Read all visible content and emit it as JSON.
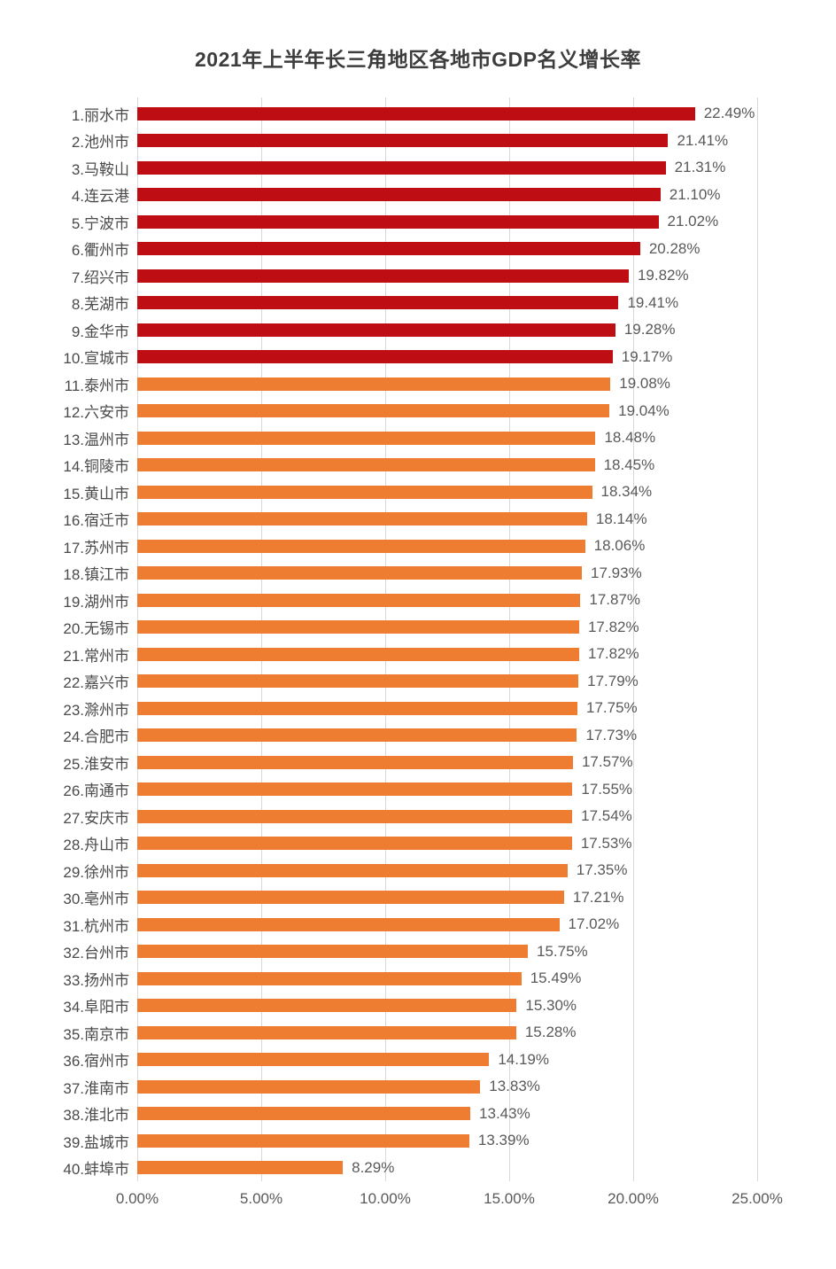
{
  "chart_data": {
    "type": "bar",
    "orientation": "horizontal",
    "title": "2021年上半年长三角地区各地市GDP名义增长率",
    "categories": [
      "1.丽水市",
      "2.池州市",
      "3.马鞍山",
      "4.连云港",
      "5.宁波市",
      "6.衢州市",
      "7.绍兴市",
      "8.芜湖市",
      "9.金华市",
      "10.宣城市",
      "11.泰州市",
      "12.六安市",
      "13.温州市",
      "14.铜陵市",
      "15.黄山市",
      "16.宿迁市",
      "17.苏州市",
      "18.镇江市",
      "19.湖州市",
      "20.无锡市",
      "21.常州市",
      "22.嘉兴市",
      "23.滁州市",
      "24.合肥市",
      "25.淮安市",
      "26.南通市",
      "27.安庆市",
      "28.舟山市",
      "29.徐州市",
      "30.亳州市",
      "31.杭州市",
      "32.台州市",
      "33.扬州市",
      "34.阜阳市",
      "35.南京市",
      "36.宿州市",
      "37.淮南市",
      "38.淮北市",
      "39.盐城市",
      "40.蚌埠市"
    ],
    "values": [
      22.49,
      21.41,
      21.31,
      21.1,
      21.02,
      20.28,
      19.82,
      19.41,
      19.28,
      19.17,
      19.08,
      19.04,
      18.48,
      18.45,
      18.34,
      18.14,
      18.06,
      17.93,
      17.87,
      17.82,
      17.82,
      17.79,
      17.75,
      17.73,
      17.57,
      17.55,
      17.54,
      17.53,
      17.35,
      17.21,
      17.02,
      15.75,
      15.49,
      15.3,
      15.28,
      14.19,
      13.83,
      13.43,
      13.39,
      8.29
    ],
    "value_labels": [
      "22.49%",
      "21.41%",
      "21.31%",
      "21.10%",
      "21.02%",
      "20.28%",
      "19.82%",
      "19.41%",
      "19.28%",
      "19.17%",
      "19.08%",
      "19.04%",
      "18.48%",
      "18.45%",
      "18.34%",
      "18.14%",
      "18.06%",
      "17.93%",
      "17.87%",
      "17.82%",
      "17.82%",
      "17.79%",
      "17.75%",
      "17.73%",
      "17.57%",
      "17.55%",
      "17.54%",
      "17.53%",
      "17.35%",
      "17.21%",
      "17.02%",
      "15.75%",
      "15.49%",
      "15.30%",
      "15.28%",
      "14.19%",
      "13.83%",
      "13.43%",
      "13.39%",
      "8.29%"
    ],
    "xlim": [
      0,
      25
    ],
    "x_tick_values": [
      0,
      5,
      10,
      15,
      20,
      25
    ],
    "x_tick_labels": [
      "0.00%",
      "5.00%",
      "10.00%",
      "15.00%",
      "20.00%",
      "25.00%"
    ],
    "grid": "vertical",
    "legend": "none",
    "colors": {
      "top10_bar": "#be0e13",
      "other_bar": "#ee7d31",
      "gridline": "#d8d8d8",
      "title_text": "#3d3d3d",
      "category_text": "#4a4a4a",
      "value_text": "#595959"
    },
    "color_rule": "ranks 1-10 dark red, ranks 11-40 orange"
  }
}
